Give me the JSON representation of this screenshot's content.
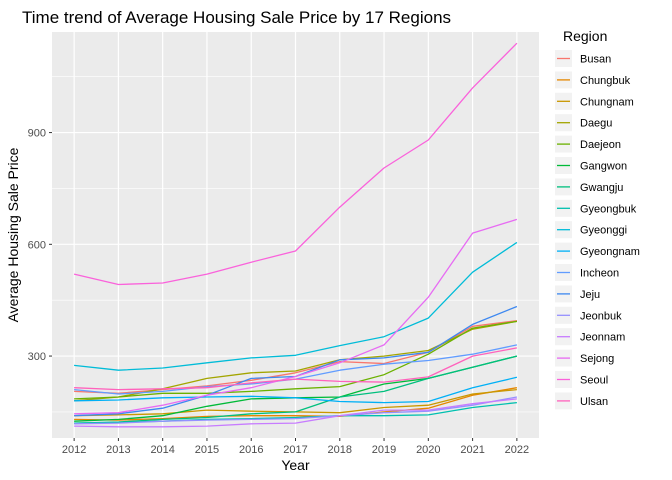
{
  "chart_data": {
    "type": "line",
    "title": "Time trend of Average Housing Sale Price by 17 Regions",
    "xlabel": "Year",
    "ylabel": "Average Housing Sale Price",
    "xlim": [
      2011.5,
      2022.5
    ],
    "ylim": [
      80,
      1170
    ],
    "x": [
      2012,
      2013,
      2014,
      2015,
      2016,
      2017,
      2018,
      2019,
      2020,
      2021,
      2022
    ],
    "x_ticks": [
      2012,
      2013,
      2014,
      2015,
      2016,
      2017,
      2018,
      2019,
      2020,
      2021,
      2022
    ],
    "y_ticks": [
      300,
      600,
      900
    ],
    "grid": true,
    "legend": {
      "title": "Region",
      "position": "right"
    },
    "series": [
      {
        "name": "Busan",
        "color": "#F8766D",
        "values": [
          205,
          200,
          210,
          220,
          235,
          255,
          285,
          280,
          310,
          380,
          395
        ]
      },
      {
        "name": "Chungbuk",
        "color": "#E58700",
        "values": [
          130,
          128,
          132,
          138,
          140,
          140,
          138,
          150,
          160,
          195,
          215
        ]
      },
      {
        "name": "Chungnam",
        "color": "#C99800",
        "values": [
          140,
          142,
          145,
          155,
          152,
          150,
          148,
          162,
          168,
          198,
          210
        ]
      },
      {
        "name": "Daegu",
        "color": "#A3A500",
        "values": [
          180,
          190,
          212,
          240,
          255,
          260,
          290,
          300,
          315,
          372,
          393
        ]
      },
      {
        "name": "Daejeon",
        "color": "#6BB100",
        "values": [
          185,
          190,
          200,
          200,
          205,
          212,
          218,
          250,
          305,
          375,
          393
        ]
      },
      {
        "name": "Gangwon",
        "color": "#00BA38",
        "values": [
          125,
          130,
          140,
          165,
          185,
          188,
          190,
          225,
          240,
          270,
          300
        ]
      },
      {
        "name": "Gwangju",
        "color": "#00BF7D",
        "values": [
          120,
          123,
          130,
          135,
          145,
          150,
          190,
          205,
          240,
          270,
          300
        ]
      },
      {
        "name": "Gyeongbuk",
        "color": "#00C0AF",
        "values": [
          120,
          122,
          125,
          130,
          132,
          135,
          140,
          140,
          142,
          162,
          175
        ]
      },
      {
        "name": "Gyeonggi",
        "color": "#00BCD8",
        "values": [
          275,
          262,
          268,
          282,
          295,
          302,
          328,
          352,
          402,
          525,
          605
        ]
      },
      {
        "name": "Gyeongnam",
        "color": "#00B0F6",
        "values": [
          180,
          182,
          188,
          190,
          192,
          188,
          178,
          175,
          178,
          215,
          243
        ]
      },
      {
        "name": "Incheon",
        "color": "#619CFF",
        "values": [
          210,
          198,
          205,
          218,
          225,
          238,
          262,
          278,
          288,
          305,
          330
        ]
      },
      {
        "name": "Jeju",
        "color": "#3D88F0",
        "values": [
          140,
          145,
          160,
          195,
          240,
          245,
          290,
          295,
          310,
          385,
          433
        ]
      },
      {
        "name": "Jeonbuk",
        "color": "#9590FF",
        "values": [
          118,
          120,
          125,
          128,
          130,
          132,
          140,
          148,
          152,
          168,
          190
        ]
      },
      {
        "name": "Jeonnam",
        "color": "#C77CFF",
        "values": [
          112,
          110,
          110,
          112,
          118,
          120,
          140,
          155,
          155,
          172,
          185
        ]
      },
      {
        "name": "Sejong",
        "color": "#E76BF3",
        "values": [
          145,
          148,
          168,
          195,
          215,
          245,
          282,
          330,
          458,
          630,
          667
        ]
      },
      {
        "name": "Seoul",
        "color": "#FA62DB",
        "values": [
          520,
          492,
          496,
          520,
          552,
          582,
          700,
          805,
          880,
          1020,
          1140
        ]
      },
      {
        "name": "Ulsan",
        "color": "#FF62BC",
        "values": [
          215,
          210,
          212,
          215,
          228,
          238,
          232,
          230,
          244,
          300,
          322
        ]
      }
    ]
  }
}
